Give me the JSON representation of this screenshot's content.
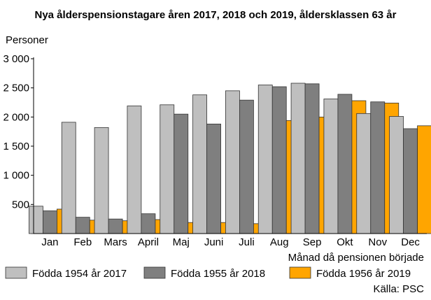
{
  "chart_data": {
    "type": "bar",
    "title": "Nya ålderspensionstagare åren 2017, 2018 och 2019, åldersklassen 63 år",
    "ylabel": "Personer",
    "xlabel": "Månad då pensionen började",
    "ylim": [
      0,
      3000
    ],
    "yticks": [
      "",
      "500",
      "1 000",
      "1 500",
      "2 000",
      "2 500",
      "3 000"
    ],
    "ytick_values": [
      0,
      500,
      1000,
      1500,
      2000,
      2500,
      3000
    ],
    "grid": false,
    "legend_position": "bottom",
    "categories": [
      "Jan",
      "Feb",
      "Mars",
      "April",
      "Maj",
      "Juni",
      "Juli",
      "Aug",
      "Sep",
      "Okt",
      "Nov",
      "Dec"
    ],
    "series": [
      {
        "name": "Födda 1954 år 2017",
        "color": "#bfbfbf",
        "values": [
          470,
          1910,
          1820,
          2190,
          2210,
          2380,
          2450,
          2550,
          2580,
          2310,
          2060,
          2010
        ]
      },
      {
        "name": "Födda 1955 år 2018",
        "color": "#7f7f7f",
        "values": [
          390,
          280,
          250,
          340,
          2050,
          1880,
          2290,
          2520,
          2570,
          2390,
          2260,
          1800
        ]
      },
      {
        "name": "Födda 1956 år 2019",
        "color": "#ffa500",
        "values": [
          420,
          230,
          220,
          240,
          190,
          190,
          170,
          1940,
          2000,
          2280,
          2240,
          1850
        ]
      }
    ],
    "source": "Källa: PSC"
  }
}
